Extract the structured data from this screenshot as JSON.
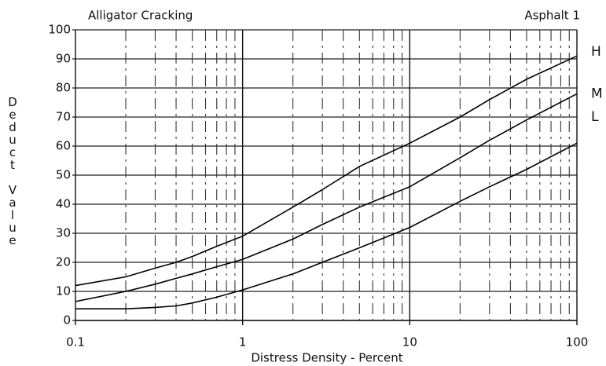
{
  "chart_data": {
    "type": "line",
    "title": "Alligator Cracking",
    "subtitle": "Asphalt 1",
    "xlabel": "Distress Density - Percent",
    "ylabel": "Deduct Value",
    "xscale": "log",
    "x": [
      0.1,
      0.2,
      0.3,
      0.4,
      0.5,
      0.7,
      1,
      2,
      3,
      5,
      10,
      20,
      30,
      50,
      100
    ],
    "series": [
      {
        "name": "H",
        "color": "#000000",
        "values": [
          12,
          15,
          18,
          20,
          22,
          25.5,
          29,
          39,
          45,
          53,
          61,
          70,
          76,
          83,
          91
        ]
      },
      {
        "name": "M",
        "color": "#000000",
        "values": [
          6.5,
          10,
          12.5,
          14.5,
          16,
          18.5,
          21,
          28,
          33,
          39,
          46,
          56,
          62,
          69,
          78
        ]
      },
      {
        "name": "L",
        "color": "#000000",
        "values": [
          4,
          4,
          4.5,
          5,
          6,
          8,
          10.5,
          16,
          20,
          25,
          32,
          41,
          46,
          52,
          61
        ]
      }
    ],
    "xlim": [
      0.1,
      100
    ],
    "ylim": [
      0,
      100
    ],
    "xticks": [
      0.1,
      1,
      10,
      100
    ],
    "xminorticks": [
      0.2,
      0.3,
      0.4,
      0.5,
      0.6,
      0.7,
      0.8,
      0.9,
      2,
      3,
      4,
      5,
      6,
      7,
      8,
      9,
      20,
      30,
      40,
      50,
      60,
      70,
      80,
      90
    ],
    "yticks": [
      0,
      10,
      20,
      30,
      40,
      50,
      60,
      70,
      80,
      90,
      100
    ],
    "grid": true
  }
}
